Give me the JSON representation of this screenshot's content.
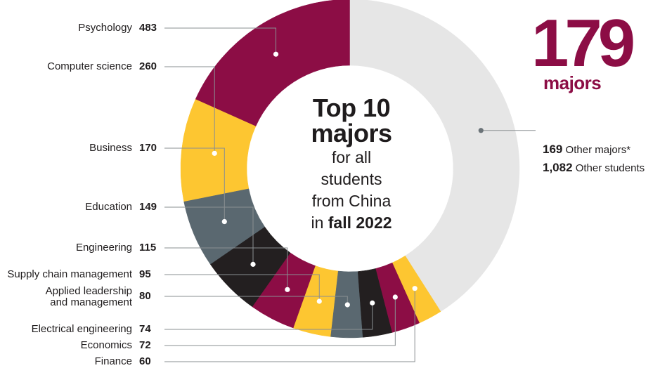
{
  "summary": {
    "count": "179",
    "label": "majors"
  },
  "center": {
    "title_line1": "Top 10",
    "title_line2": "majors",
    "sub_line1": "for all",
    "sub_line2": "students",
    "sub_line3": "from China",
    "sub_line4_prefix": "in",
    "sub_line4_bold": "fall 2022"
  },
  "other": {
    "majors_value": "169",
    "majors_label": "Other majors*",
    "students_value": "1,082",
    "students_label": "Other students"
  },
  "colors": {
    "maroon": "#8c0d45",
    "gold": "#fdc631",
    "slate": "#5a6870",
    "black": "#231f20",
    "gray": "#e6e6e6"
  },
  "chart_data": {
    "type": "donut",
    "total_majors": 179,
    "categories": [
      "Psychology",
      "Computer science",
      "Business",
      "Education",
      "Engineering",
      "Supply chain management",
      "Applied leadership and management",
      "Electrical engineering",
      "Economics",
      "Finance",
      "Other students"
    ],
    "values": [
      483,
      260,
      170,
      149,
      115,
      95,
      80,
      74,
      72,
      60,
      1082
    ],
    "slice_colors": [
      "maroon",
      "gold",
      "slate",
      "black",
      "maroon",
      "gold",
      "slate",
      "black",
      "maroon",
      "gold",
      "gray"
    ],
    "labels": [
      {
        "name": "Psychology",
        "value": "483"
      },
      {
        "name": "Computer science",
        "value": "260"
      },
      {
        "name": "Business",
        "value": "170"
      },
      {
        "name": "Education",
        "value": "149"
      },
      {
        "name": "Engineering",
        "value": "115"
      },
      {
        "name": "Supply chain management",
        "value": "95"
      },
      {
        "name": "Applied leadership\nand management",
        "value": "80"
      },
      {
        "name": "Electrical engineering",
        "value": "74"
      },
      {
        "name": "Economics",
        "value": "72"
      },
      {
        "name": "Finance",
        "value": "60"
      }
    ]
  }
}
